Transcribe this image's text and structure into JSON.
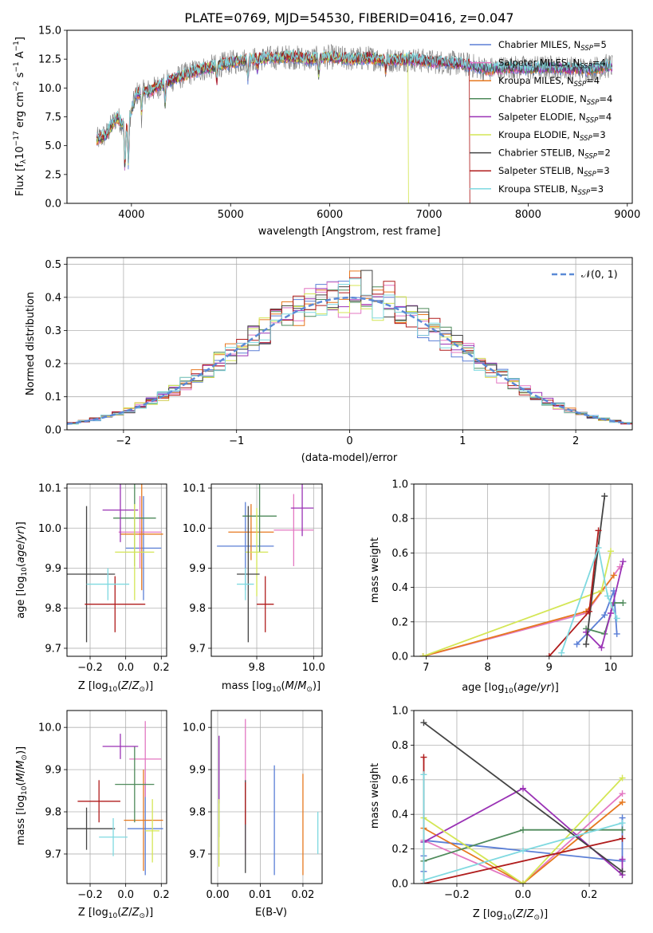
{
  "chart_data": [
    {
      "type": "line",
      "title": "PLATE=0769, MJD=54530, FIBERID=0416, z=0.047",
      "xlabel": "wavelength [Angstrom, rest frame]",
      "ylabel": "Flux [f_λ 10^-17 erg cm^-2 s^-1 A^-1]",
      "xlim": [
        3350,
        9050
      ],
      "ylim": [
        0,
        15
      ],
      "xticks": [
        "4000",
        "5000",
        "6000",
        "7000",
        "8000",
        "9000"
      ],
      "yticks": [
        "0.0",
        "2.5",
        "5.0",
        "7.5",
        "10.0",
        "12.5",
        "15.0"
      ],
      "legend_position": "right",
      "series": [
        {
          "name": "Chabrier MILES, N_SSP=5",
          "color": "#5b7fd6"
        },
        {
          "name": "Salpeter MILES, N_SSP=4",
          "color": "#e377c2"
        },
        {
          "name": "Kroupa MILES, N_SSP=4",
          "color": "#e6781f"
        },
        {
          "name": "Chabrier ELODIE, N_SSP=4",
          "color": "#4e8a5a"
        },
        {
          "name": "Salpeter ELODIE, N_SSP=4",
          "color": "#9a32b5"
        },
        {
          "name": "Kroupa ELODIE, N_SSP=3",
          "color": "#d4e655"
        },
        {
          "name": "Chabrier STELIB, N_SSP=2",
          "color": "#444444"
        },
        {
          "name": "Salpeter STELIB, N_SSP=3",
          "color": "#b01c1c"
        },
        {
          "name": "Kroupa STELIB, N_SSP=3",
          "color": "#7fd9e0"
        }
      ],
      "continuum": {
        "x": [
          3650,
          3750,
          3850,
          3950,
          4050,
          4200,
          4350,
          4500,
          4650,
          4800,
          5000,
          5200,
          5400,
          5600,
          5800,
          6000,
          6200,
          6400,
          6600,
          6800,
          7000,
          7200,
          7400,
          7600,
          7800,
          8000,
          8200,
          8400,
          8600,
          8800
        ],
        "y": [
          5.5,
          6.0,
          7.5,
          6.5,
          9.5,
          9.8,
          10.5,
          11.0,
          11.5,
          11.8,
          12.2,
          12.5,
          12.6,
          12.7,
          12.5,
          12.7,
          12.5,
          12.6,
          12.4,
          12.5,
          12.3,
          12.2,
          12.0,
          11.6,
          11.8,
          11.7,
          11.8,
          11.7,
          11.6,
          11.9
        ]
      },
      "model_dropouts": [
        {
          "series": "Kroupa ELODIE, N_SSP=3",
          "x_start": 6790
        },
        {
          "series": "Salpeter STELIB, N_SSP=3",
          "x_start": 7410
        }
      ]
    },
    {
      "type": "line",
      "xlabel": "(data-model)/error",
      "ylabel": "Normed distribution",
      "xlim": [
        -2.5,
        2.5
      ],
      "ylim": [
        0,
        0.52
      ],
      "xticks": [
        "−2",
        "−1",
        "0",
        "1",
        "2"
      ],
      "yticks": [
        "0.0",
        "0.1",
        "0.2",
        "0.3",
        "0.4",
        "0.5"
      ],
      "grid": true,
      "legend_position": "top-right",
      "legend": "𝒩(0, 1)",
      "reference": {
        "name": "𝒩(0, 1)",
        "mean": 0,
        "sigma": 1,
        "style": "dashed",
        "color": "#5b8ad6"
      },
      "histogram_bin_width": 0.1
    },
    {
      "type": "scatter",
      "xlabel": "Z [log10(Z/Z⊙)]",
      "ylabel": "age [log10(age/yr)]",
      "xlim": [
        -0.33,
        0.23
      ],
      "ylim": [
        9.68,
        10.11
      ],
      "xticks": [
        "−0.2",
        "0.0",
        "0.2"
      ],
      "yticks": [
        "9.7",
        "9.8",
        "9.9",
        "10.0",
        "10.1"
      ],
      "grid": true,
      "points": [
        {
          "color": "#5b7fd6",
          "x": 0.1,
          "y": 9.95,
          "xerr": 0.1,
          "yerr": 0.13
        },
        {
          "color": "#e377c2",
          "x": 0.08,
          "y": 9.99,
          "xerr": 0.12,
          "yerr": 0.09
        },
        {
          "color": "#e6781f",
          "x": 0.09,
          "y": 9.985,
          "xerr": 0.12,
          "yerr": 0.14
        },
        {
          "color": "#4e8a5a",
          "x": 0.05,
          "y": 10.025,
          "xerr": 0.12,
          "yerr": 0.12
        },
        {
          "color": "#9a32b5",
          "x": -0.03,
          "y": 10.045,
          "xerr": 0.1,
          "yerr": 0.08
        },
        {
          "color": "#d4e655",
          "x": 0.05,
          "y": 9.94,
          "xerr": 0.11,
          "yerr": 0.12
        },
        {
          "color": "#444444",
          "x": -0.22,
          "y": 9.885,
          "xerr": 0.16,
          "yerr": 0.17
        },
        {
          "color": "#b01c1c",
          "x": -0.06,
          "y": 9.81,
          "xerr": 0.17,
          "yerr": 0.07
        },
        {
          "color": "#7fd9e0",
          "x": -0.1,
          "y": 9.86,
          "xerr": 0.12,
          "yerr": 0.04
        }
      ]
    },
    {
      "type": "scatter",
      "xlabel": "mass [log10(M/M⊙)]",
      "ylabel": "",
      "xlim": [
        9.64,
        10.03
      ],
      "ylim": [
        9.68,
        10.11
      ],
      "xticks": [
        "9.8",
        "10.0"
      ],
      "yticks": [
        "9.7",
        "9.8",
        "9.9",
        "10.0",
        "10.1"
      ],
      "grid": true,
      "points": [
        {
          "color": "#5b7fd6",
          "x": 9.76,
          "y": 9.955,
          "xerr": 0.1,
          "yerr": 0.11
        },
        {
          "color": "#e377c2",
          "x": 9.93,
          "y": 9.995,
          "xerr": 0.07,
          "yerr": 0.09
        },
        {
          "color": "#e6781f",
          "x": 9.78,
          "y": 9.99,
          "xerr": 0.08,
          "yerr": 0.07
        },
        {
          "color": "#4e8a5a",
          "x": 9.81,
          "y": 10.03,
          "xerr": 0.06,
          "yerr": 0.09
        },
        {
          "color": "#9a32b5",
          "x": 9.96,
          "y": 10.05,
          "xerr": 0.04,
          "yerr": 0.07
        },
        {
          "color": "#d4e655",
          "x": 9.8,
          "y": 9.94,
          "xerr": 0.04,
          "yerr": 0.11
        },
        {
          "color": "#444444",
          "x": 9.77,
          "y": 9.885,
          "xerr": 0.04,
          "yerr": 0.17
        },
        {
          "color": "#b01c1c",
          "x": 9.83,
          "y": 9.81,
          "xerr": 0.03,
          "yerr": 0.07
        },
        {
          "color": "#7fd9e0",
          "x": 9.76,
          "y": 9.86,
          "xerr": 0.03,
          "yerr": 0.04
        }
      ]
    },
    {
      "type": "line",
      "xlabel": "age [log10(age/yr)]",
      "ylabel": "mass weight",
      "xlim": [
        6.8,
        10.35
      ],
      "ylim": [
        0,
        1
      ],
      "xticks": [
        "7",
        "8",
        "9",
        "10"
      ],
      "yticks": [
        "0.0",
        "0.2",
        "0.4",
        "0.6",
        "0.8",
        "1.0"
      ],
      "grid": true,
      "series": [
        {
          "color": "#5b7fd6",
          "x": [
            9.45,
            9.9,
            10.05,
            10.1
          ],
          "y": [
            0.07,
            0.24,
            0.38,
            0.13
          ]
        },
        {
          "color": "#e377c2",
          "x": [
            6.95,
            9.6,
            10.15
          ],
          "y": [
            0.0,
            0.25,
            0.52
          ]
        },
        {
          "color": "#e6781f",
          "x": [
            6.95,
            9.6,
            10.05
          ],
          "y": [
            0.0,
            0.26,
            0.47
          ]
        },
        {
          "color": "#4e8a5a",
          "x": [
            9.6,
            9.9,
            10.05,
            10.2
          ],
          "y": [
            0.16,
            0.13,
            0.31,
            0.31
          ]
        },
        {
          "color": "#9a32b5",
          "x": [
            9.6,
            9.85,
            10.0,
            10.2
          ],
          "y": [
            0.14,
            0.05,
            0.25,
            0.55
          ]
        },
        {
          "color": "#d4e655",
          "x": [
            6.95,
            9.85,
            10.0
          ],
          "y": [
            0.0,
            0.38,
            0.61
          ]
        },
        {
          "color": "#444444",
          "x": [
            9.6,
            9.9
          ],
          "y": [
            0.07,
            0.93
          ]
        },
        {
          "color": "#b01c1c",
          "x": [
            9.0,
            9.65,
            9.8
          ],
          "y": [
            0.0,
            0.26,
            0.73
          ]
        },
        {
          "color": "#7fd9e0",
          "x": [
            9.2,
            9.8,
            9.95,
            10.1
          ],
          "y": [
            0.02,
            0.63,
            0.35,
            0.22
          ]
        }
      ]
    },
    {
      "type": "scatter",
      "xlabel": "Z [log10(Z/Z⊙)]",
      "ylabel": "mass [log10(M/M⊙)]",
      "xlim": [
        -0.33,
        0.23
      ],
      "ylim": [
        9.63,
        10.04
      ],
      "xticks": [
        "−0.2",
        "0.0",
        "0.2"
      ],
      "yticks": [
        "9.7",
        "9.8",
        "9.9",
        "10.0"
      ],
      "grid": true,
      "points": [
        {
          "color": "#5b7fd6",
          "x": 0.11,
          "y": 9.76,
          "xerr": 0.1,
          "yerr": 0.11
        },
        {
          "color": "#e377c2",
          "x": 0.11,
          "y": 9.925,
          "xerr": 0.09,
          "yerr": 0.09
        },
        {
          "color": "#e6781f",
          "x": 0.1,
          "y": 9.78,
          "xerr": 0.11,
          "yerr": 0.12
        },
        {
          "color": "#4e8a5a",
          "x": 0.05,
          "y": 9.865,
          "xerr": 0.11,
          "yerr": 0.09
        },
        {
          "color": "#9a32b5",
          "x": -0.03,
          "y": 9.955,
          "xerr": 0.1,
          "yerr": 0.03
        },
        {
          "color": "#d4e655",
          "x": 0.15,
          "y": 9.755,
          "xerr": 0.04,
          "yerr": 0.075
        },
        {
          "color": "#444444",
          "x": -0.22,
          "y": 9.76,
          "xerr": 0.16,
          "yerr": 0.05
        },
        {
          "color": "#b01c1c",
          "x": -0.15,
          "y": 9.825,
          "xerr": 0.12,
          "yerr": 0.05
        },
        {
          "color": "#7fd9e0",
          "x": -0.07,
          "y": 9.74,
          "xerr": 0.08,
          "yerr": 0.045
        }
      ]
    },
    {
      "type": "scatter",
      "xlabel": "E(B-V)",
      "ylabel": "",
      "xlim": [
        -0.0015,
        0.0245
      ],
      "ylim": [
        9.63,
        10.04
      ],
      "xticks": [
        "0.00",
        "0.01",
        "0.02"
      ],
      "yticks": [
        "9.7",
        "9.8",
        "9.9",
        "10.0"
      ],
      "grid": true,
      "points": [
        {
          "color": "#5b7fd6",
          "x": 0.0133,
          "y": 9.78,
          "yerr": 0.13
        },
        {
          "color": "#e377c2",
          "x": 0.0065,
          "y": 9.86,
          "yerr": 0.16
        },
        {
          "color": "#e6781f",
          "x": 0.02,
          "y": 9.77,
          "yerr": 0.12
        },
        {
          "color": "#4e8a5a",
          "x": 0.0003,
          "y": 9.86,
          "yerr": 0.12
        },
        {
          "color": "#9a32b5",
          "x": 0.0003,
          "y": 9.9,
          "yerr": 0.08
        },
        {
          "color": "#d4e655",
          "x": 0.0003,
          "y": 9.75,
          "yerr": 0.08
        },
        {
          "color": "#444444",
          "x": 0.0065,
          "y": 9.765,
          "yerr": 0.11
        },
        {
          "color": "#b01c1c",
          "x": 0.0065,
          "y": 9.82,
          "yerr": 0.05
        },
        {
          "color": "#7fd9e0",
          "x": 0.0235,
          "y": 9.75,
          "yerr": 0.05
        }
      ]
    },
    {
      "type": "line",
      "xlabel": "Z [log10(Z/Z⊙)]",
      "ylabel": "mass weight",
      "xlim": [
        -0.33,
        0.33
      ],
      "ylim": [
        0,
        1
      ],
      "xticks": [
        "−0.2",
        "0.0",
        "0.2"
      ],
      "yticks": [
        "0.0",
        "0.2",
        "0.4",
        "0.6",
        "0.8",
        "1.0"
      ],
      "grid": true,
      "series": [
        {
          "color": "#5b7fd6",
          "x": [
            -0.3,
            -0.3,
            -0.3,
            -0.3,
            0.3,
            0.3
          ],
          "y": [
            0.07,
            0.16,
            0.24,
            0.25,
            0.13,
            0.38
          ]
        },
        {
          "color": "#e377c2",
          "x": [
            -0.3,
            0.0,
            0.3
          ],
          "y": [
            0.25,
            0.0,
            0.52
          ]
        },
        {
          "color": "#e6781f",
          "x": [
            -0.3,
            0.0,
            0.3
          ],
          "y": [
            0.32,
            0.0,
            0.47
          ]
        },
        {
          "color": "#4e8a5a",
          "x": [
            -0.3,
            0.0,
            0.3
          ],
          "y": [
            0.13,
            0.31,
            0.31
          ]
        },
        {
          "color": "#9a32b5",
          "x": [
            -0.3,
            0.0,
            0.3,
            0.3
          ],
          "y": [
            0.24,
            0.55,
            0.05,
            0.14
          ]
        },
        {
          "color": "#d4e655",
          "x": [
            -0.3,
            0.0,
            0.3
          ],
          "y": [
            0.38,
            0.0,
            0.61
          ]
        },
        {
          "color": "#444444",
          "x": [
            -0.3,
            0.3
          ],
          "y": [
            0.93,
            0.07
          ]
        },
        {
          "color": "#b01c1c",
          "x": [
            -0.3,
            -0.3,
            0.3
          ],
          "y": [
            0.73,
            0.0,
            0.26
          ]
        },
        {
          "color": "#7fd9e0",
          "x": [
            -0.3,
            -0.3,
            0.0,
            0.3
          ],
          "y": [
            0.63,
            0.02,
            0.19,
            0.35
          ]
        }
      ]
    }
  ]
}
